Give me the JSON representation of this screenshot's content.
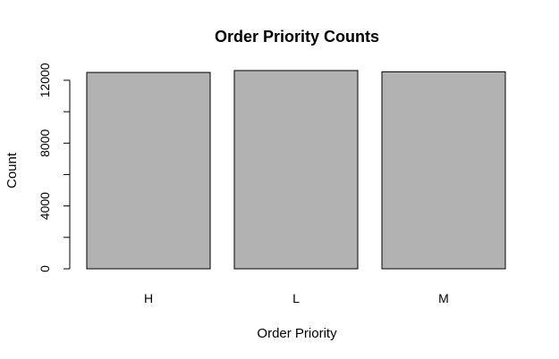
{
  "chart_data": {
    "type": "bar",
    "title": "Order Priority Counts",
    "xlabel": "Order Priority",
    "ylabel": "Count",
    "categories": [
      "H",
      "L",
      "M"
    ],
    "values": [
      12500,
      12620,
      12540
    ],
    "ylim": [
      0,
      12620
    ],
    "y_ticks_labeled": [
      0,
      4000,
      8000,
      12000
    ],
    "y_ticks_minor": [
      2000,
      6000,
      10000
    ],
    "y_tick_labels": [
      "0",
      "4000",
      "8000",
      "12000"
    ],
    "bar_color": "#b2b2b2",
    "border_color": "#000000",
    "grid": false,
    "legend": "none"
  }
}
